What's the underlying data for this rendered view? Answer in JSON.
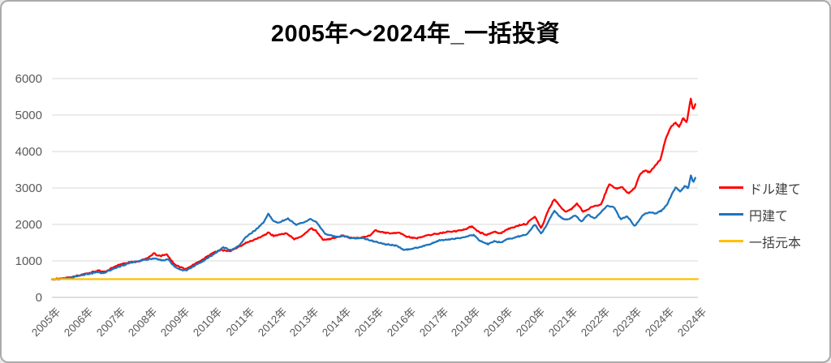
{
  "chart_data": {
    "type": "line",
    "title": "2005年～2024年_一括投資",
    "xlabel": "",
    "ylabel": "",
    "ylim": [
      0,
      6000
    ],
    "y_ticks": [
      0,
      1000,
      2000,
      3000,
      4000,
      5000,
      6000
    ],
    "x_domain_years": [
      2005,
      2025
    ],
    "x_tick_labels": [
      "2005年",
      "2006年",
      "2007年",
      "2008年",
      "2009年",
      "2010年",
      "2011年",
      "2012年",
      "2013年",
      "2014年",
      "2015年",
      "2016年",
      "2017年",
      "2018年",
      "2019年",
      "2020年",
      "2021年",
      "2022年",
      "2023年",
      "2024年",
      "2024年"
    ],
    "grid": "horizontal",
    "gridline_color": "#d9d9d9",
    "axis_line_color": "#bfbfbf",
    "tick_label_color": "#595959",
    "legend_position": "right",
    "principal_value": 500,
    "series": [
      {
        "name": "ドル建て",
        "color": "#FF0000",
        "jitter": 20,
        "points": [
          [
            2005.0,
            500
          ],
          [
            2005.3,
            520
          ],
          [
            2005.6,
            565
          ],
          [
            2005.9,
            610
          ],
          [
            2006.2,
            680
          ],
          [
            2006.45,
            740
          ],
          [
            2006.6,
            690
          ],
          [
            2006.9,
            820
          ],
          [
            2007.1,
            900
          ],
          [
            2007.4,
            960
          ],
          [
            2007.7,
            990
          ],
          [
            2007.95,
            1080
          ],
          [
            2008.15,
            1200
          ],
          [
            2008.35,
            1130
          ],
          [
            2008.55,
            1180
          ],
          [
            2008.8,
            900
          ],
          [
            2009.0,
            820
          ],
          [
            2009.15,
            780
          ],
          [
            2009.4,
            900
          ],
          [
            2009.7,
            1060
          ],
          [
            2010.0,
            1230
          ],
          [
            2010.25,
            1300
          ],
          [
            2010.5,
            1260
          ],
          [
            2010.75,
            1370
          ],
          [
            2011.0,
            1490
          ],
          [
            2011.3,
            1590
          ],
          [
            2011.55,
            1700
          ],
          [
            2011.7,
            1780
          ],
          [
            2011.85,
            1690
          ],
          [
            2012.0,
            1710
          ],
          [
            2012.25,
            1760
          ],
          [
            2012.5,
            1600
          ],
          [
            2012.75,
            1680
          ],
          [
            2013.0,
            1890
          ],
          [
            2013.15,
            1850
          ],
          [
            2013.4,
            1570
          ],
          [
            2013.6,
            1600
          ],
          [
            2013.8,
            1640
          ],
          [
            2014.0,
            1690
          ],
          [
            2014.3,
            1620
          ],
          [
            2014.6,
            1640
          ],
          [
            2014.85,
            1700
          ],
          [
            2015.0,
            1840
          ],
          [
            2015.2,
            1790
          ],
          [
            2015.5,
            1750
          ],
          [
            2015.75,
            1780
          ],
          [
            2016.0,
            1660
          ],
          [
            2016.3,
            1620
          ],
          [
            2016.6,
            1700
          ],
          [
            2016.9,
            1740
          ],
          [
            2017.2,
            1790
          ],
          [
            2017.5,
            1820
          ],
          [
            2017.8,
            1860
          ],
          [
            2018.0,
            1950
          ],
          [
            2018.2,
            1800
          ],
          [
            2018.45,
            1720
          ],
          [
            2018.7,
            1800
          ],
          [
            2018.9,
            1750
          ],
          [
            2019.1,
            1870
          ],
          [
            2019.4,
            1960
          ],
          [
            2019.7,
            2020
          ],
          [
            2019.95,
            2220
          ],
          [
            2020.15,
            1890
          ],
          [
            2020.35,
            2350
          ],
          [
            2020.55,
            2700
          ],
          [
            2020.75,
            2480
          ],
          [
            2020.9,
            2350
          ],
          [
            2021.1,
            2430
          ],
          [
            2021.25,
            2580
          ],
          [
            2021.45,
            2350
          ],
          [
            2021.7,
            2470
          ],
          [
            2022.0,
            2550
          ],
          [
            2022.25,
            3110
          ],
          [
            2022.45,
            2980
          ],
          [
            2022.65,
            3030
          ],
          [
            2022.85,
            2850
          ],
          [
            2023.05,
            3000
          ],
          [
            2023.2,
            3370
          ],
          [
            2023.35,
            3480
          ],
          [
            2023.5,
            3430
          ],
          [
            2023.7,
            3630
          ],
          [
            2023.85,
            3800
          ],
          [
            2024.0,
            4350
          ],
          [
            2024.15,
            4650
          ],
          [
            2024.3,
            4800
          ],
          [
            2024.42,
            4680
          ],
          [
            2024.55,
            4930
          ],
          [
            2024.65,
            4780
          ],
          [
            2024.78,
            5470
          ],
          [
            2024.85,
            5120
          ],
          [
            2024.92,
            5300
          ]
        ]
      },
      {
        "name": "円建て",
        "color": "#1F74BC",
        "jitter": 20,
        "points": [
          [
            2005.0,
            492
          ],
          [
            2005.3,
            505
          ],
          [
            2005.6,
            545
          ],
          [
            2005.9,
            600
          ],
          [
            2006.2,
            655
          ],
          [
            2006.45,
            690
          ],
          [
            2006.6,
            660
          ],
          [
            2006.9,
            780
          ],
          [
            2007.1,
            850
          ],
          [
            2007.4,
            940
          ],
          [
            2007.7,
            1000
          ],
          [
            2007.95,
            1040
          ],
          [
            2008.15,
            1070
          ],
          [
            2008.4,
            1010
          ],
          [
            2008.6,
            1050
          ],
          [
            2008.8,
            830
          ],
          [
            2009.0,
            760
          ],
          [
            2009.15,
            740
          ],
          [
            2009.4,
            860
          ],
          [
            2009.7,
            1010
          ],
          [
            2010.0,
            1180
          ],
          [
            2010.3,
            1380
          ],
          [
            2010.55,
            1290
          ],
          [
            2010.8,
            1420
          ],
          [
            2011.0,
            1660
          ],
          [
            2011.3,
            1850
          ],
          [
            2011.55,
            2050
          ],
          [
            2011.7,
            2290
          ],
          [
            2011.85,
            2100
          ],
          [
            2012.0,
            2040
          ],
          [
            2012.3,
            2160
          ],
          [
            2012.55,
            1990
          ],
          [
            2012.8,
            2060
          ],
          [
            2013.0,
            2150
          ],
          [
            2013.2,
            2060
          ],
          [
            2013.45,
            1750
          ],
          [
            2013.65,
            1700
          ],
          [
            2013.85,
            1660
          ],
          [
            2014.0,
            1690
          ],
          [
            2014.3,
            1620
          ],
          [
            2014.6,
            1630
          ],
          [
            2014.9,
            1560
          ],
          [
            2015.1,
            1500
          ],
          [
            2015.4,
            1450
          ],
          [
            2015.65,
            1420
          ],
          [
            2015.9,
            1300
          ],
          [
            2016.15,
            1330
          ],
          [
            2016.45,
            1400
          ],
          [
            2016.7,
            1450
          ],
          [
            2017.0,
            1560
          ],
          [
            2017.3,
            1590
          ],
          [
            2017.6,
            1630
          ],
          [
            2017.9,
            1680
          ],
          [
            2018.05,
            1720
          ],
          [
            2018.25,
            1550
          ],
          [
            2018.5,
            1460
          ],
          [
            2018.7,
            1540
          ],
          [
            2018.9,
            1500
          ],
          [
            2019.1,
            1590
          ],
          [
            2019.4,
            1660
          ],
          [
            2019.7,
            1720
          ],
          [
            2019.95,
            2000
          ],
          [
            2020.15,
            1740
          ],
          [
            2020.35,
            2050
          ],
          [
            2020.55,
            2370
          ],
          [
            2020.75,
            2200
          ],
          [
            2020.9,
            2130
          ],
          [
            2021.05,
            2160
          ],
          [
            2021.2,
            2260
          ],
          [
            2021.4,
            2080
          ],
          [
            2021.6,
            2270
          ],
          [
            2021.8,
            2160
          ],
          [
            2022.0,
            2330
          ],
          [
            2022.2,
            2520
          ],
          [
            2022.4,
            2470
          ],
          [
            2022.6,
            2150
          ],
          [
            2022.8,
            2230
          ],
          [
            2023.05,
            1950
          ],
          [
            2023.3,
            2260
          ],
          [
            2023.5,
            2330
          ],
          [
            2023.7,
            2300
          ],
          [
            2023.9,
            2390
          ],
          [
            2024.05,
            2550
          ],
          [
            2024.2,
            2850
          ],
          [
            2024.32,
            3020
          ],
          [
            2024.45,
            2900
          ],
          [
            2024.6,
            3060
          ],
          [
            2024.7,
            2980
          ],
          [
            2024.78,
            3350
          ],
          [
            2024.85,
            3150
          ],
          [
            2024.92,
            3280
          ]
        ]
      },
      {
        "name": "一括元本",
        "color": "#FFC000",
        "jitter": 0,
        "points": [
          [
            2005.0,
            500
          ],
          [
            2025.0,
            500
          ]
        ]
      }
    ]
  }
}
